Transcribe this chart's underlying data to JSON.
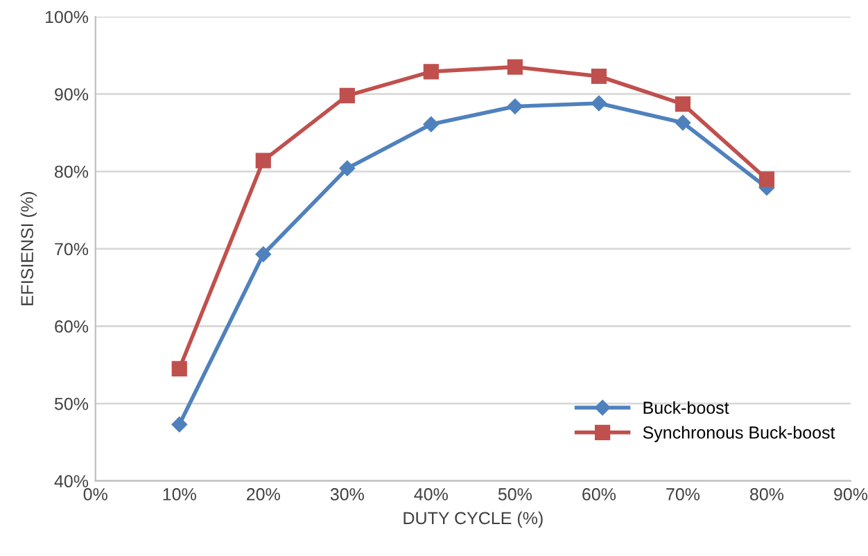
{
  "chart_data": {
    "type": "line",
    "xlabel": "DUTY CYCLE (%)",
    "ylabel": "EFISIENSI (%)",
    "x": [
      10,
      20,
      30,
      40,
      50,
      60,
      70,
      80
    ],
    "series": [
      {
        "name": "Buck-boost",
        "color": "#4f81bd",
        "marker": "diamond",
        "values": [
          47.3,
          69.3,
          80.4,
          86.1,
          88.4,
          88.8,
          86.3,
          77.9
        ]
      },
      {
        "name": "Synchronous Buck-boost",
        "color": "#c0504d",
        "marker": "square",
        "values": [
          54.5,
          81.4,
          89.8,
          92.9,
          93.5,
          92.3,
          88.7,
          79.0
        ]
      }
    ],
    "xlim": [
      0,
      90
    ],
    "xticks": [
      {
        "value": 0,
        "label": "0%"
      },
      {
        "value": 10,
        "label": "10%"
      },
      {
        "value": 20,
        "label": "20%"
      },
      {
        "value": 30,
        "label": "30%"
      },
      {
        "value": 40,
        "label": "40%"
      },
      {
        "value": 50,
        "label": "50%"
      },
      {
        "value": 60,
        "label": "60%"
      },
      {
        "value": 70,
        "label": "70%"
      },
      {
        "value": 80,
        "label": "80%"
      },
      {
        "value": 90,
        "label": "90%"
      }
    ],
    "ylim": [
      40,
      100
    ],
    "yticks": [
      {
        "value": 40,
        "label": "40%"
      },
      {
        "value": 50,
        "label": "50%"
      },
      {
        "value": 60,
        "label": "60%"
      },
      {
        "value": 70,
        "label": "70%"
      },
      {
        "value": 80,
        "label": "80%"
      },
      {
        "value": 90,
        "label": "90%"
      },
      {
        "value": 100,
        "label": "100%"
      }
    ],
    "grid": "y",
    "legend": "bottom right",
    "line_style": "solid"
  }
}
